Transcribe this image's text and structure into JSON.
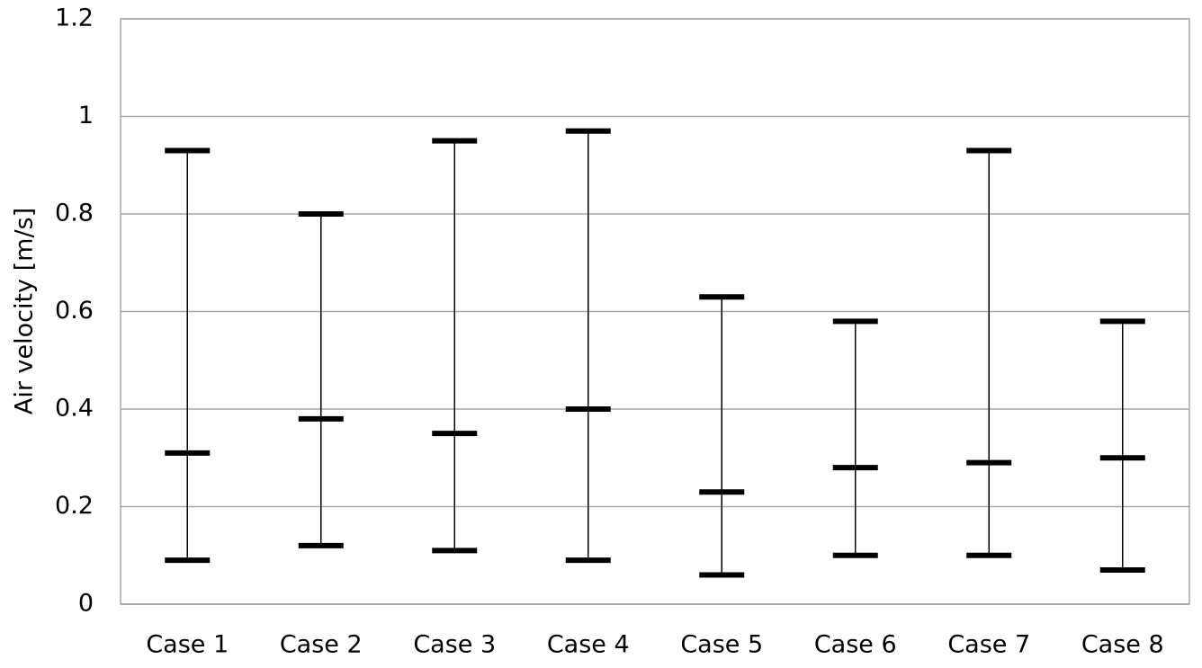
{
  "chart_data": {
    "type": "range",
    "y_label": "Air velocity [m/s]",
    "categories": [
      "Case 1",
      "Case 2",
      "Case 3",
      "Case 4",
      "Case 5",
      "Case 6",
      "Case 7",
      "Case 8"
    ],
    "max": [
      0.93,
      0.8,
      0.95,
      0.97,
      0.63,
      0.58,
      0.93,
      0.58
    ],
    "mean": [
      0.31,
      0.38,
      0.35,
      0.4,
      0.23,
      0.28,
      0.29,
      0.3
    ],
    "min": [
      0.09,
      0.12,
      0.11,
      0.09,
      0.06,
      0.1,
      0.1,
      0.07
    ],
    "color": "#000000",
    "ylim": [
      0,
      1.2
    ],
    "yticks": [
      0,
      0.2,
      0.4,
      0.6,
      0.8,
      1,
      1.2
    ],
    "grid": true
  }
}
